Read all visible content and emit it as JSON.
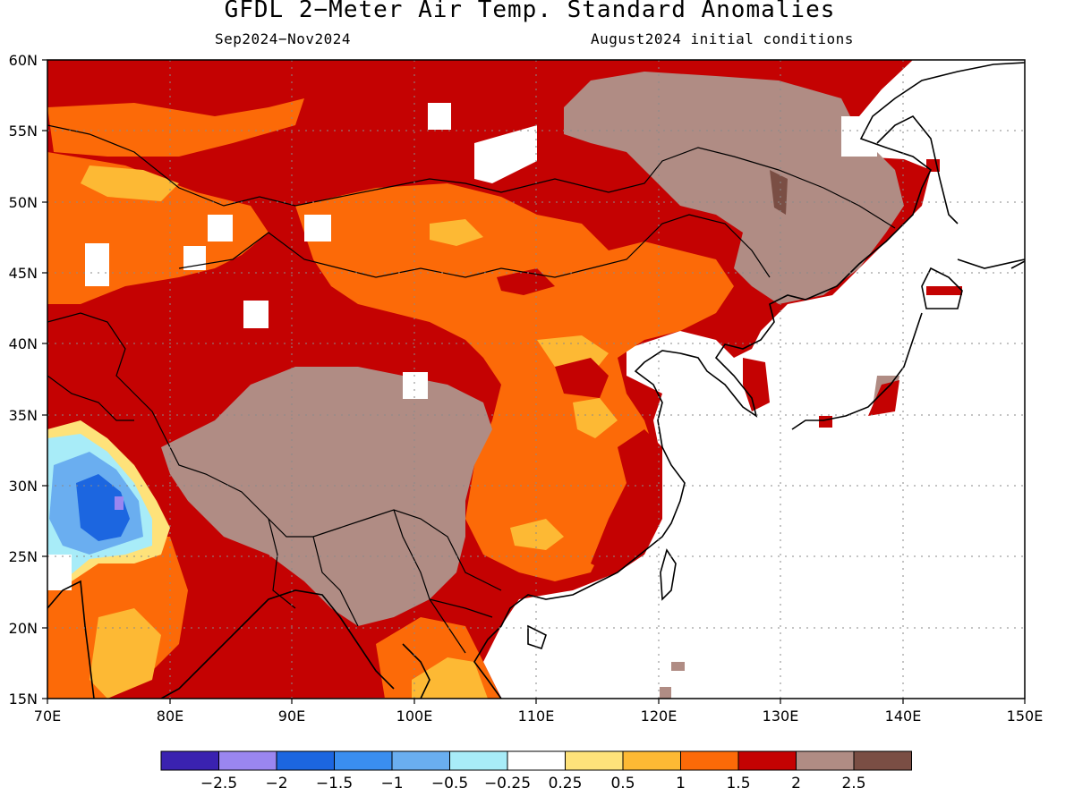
{
  "header": {
    "title": "GFDL 2−Meter Air Temp. Standard Anomalies",
    "period": "Sep2024−Nov2024",
    "init": "August2024 initial conditions"
  },
  "map": {
    "lon_labels": [
      "70E",
      "80E",
      "90E",
      "100E",
      "110E",
      "120E",
      "130E",
      "140E",
      "150E"
    ],
    "lat_labels": [
      "60N",
      "55N",
      "50N",
      "45N",
      "40N",
      "35N",
      "30N",
      "25N",
      "20N",
      "15N"
    ],
    "lon_range": [
      70,
      150
    ],
    "lat_range": [
      15,
      60
    ],
    "grid": "dotted"
  },
  "colorbar": {
    "colors": [
      "#3a22b0",
      "#9a86f0",
      "#1c66e0",
      "#3a8ef0",
      "#6aaef0",
      "#a8ecf8",
      "#ffffff",
      "#fee27a",
      "#fdb934",
      "#fc6a08",
      "#c40202",
      "#b08c84",
      "#7a4e44"
    ],
    "labels": [
      "−2.5",
      "−2",
      "−1.5",
      "−1",
      "−0.5",
      "−0.25",
      "0.25",
      "0.5",
      "1",
      "1.5",
      "2",
      "2.5"
    ]
  }
}
